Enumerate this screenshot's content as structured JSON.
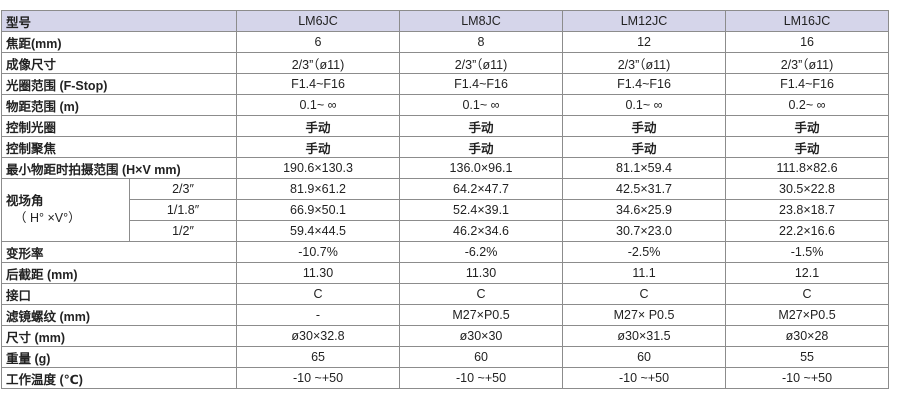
{
  "header": {
    "label": "型号",
    "models": [
      "LM6JC",
      "LM8JC",
      "LM12JC",
      "LM16JC"
    ]
  },
  "rows": {
    "focal": {
      "label": "焦距(mm)",
      "values": [
        "6",
        "8",
        "12",
        "16"
      ]
    },
    "imaging": {
      "label": "成像尺寸",
      "values": [
        "2/3”（ø11)",
        "2/3”（ø11)",
        "2/3”（ø11)",
        "2/3”（ø11)"
      ]
    },
    "aperture": {
      "label": "光圈范围 (F-Stop)",
      "values": [
        "F1.4~F16",
        "F1.4~F16",
        "F1.4~F16",
        "F1.4~F16"
      ]
    },
    "object_range": {
      "label": "物距范围 (m)",
      "values": [
        "0.1~ ∞",
        "0.1~ ∞",
        "0.1~ ∞",
        "0.2~ ∞"
      ]
    },
    "iris_control": {
      "label": "控制光圈",
      "values": [
        "手动",
        "手动",
        "手动",
        "手动"
      ]
    },
    "focus_control": {
      "label": "控制聚焦",
      "values": [
        "手动",
        "手动",
        "手动",
        "手动"
      ]
    },
    "min_area": {
      "label": "最小物距时拍摄范围 (H×V mm)",
      "values": [
        "190.6×130.3",
        "136.0×96.1",
        "81.1×59.4",
        "111.8×82.6"
      ]
    },
    "fov": {
      "label_line1": "视场角",
      "label_line2": "（ H° ×V°）",
      "rows": [
        {
          "format": "2/3″",
          "values": [
            "81.9×61.2",
            "64.2×47.7",
            "42.5×31.7",
            "30.5×22.8"
          ]
        },
        {
          "format": "1/1.8″",
          "values": [
            "66.9×50.1",
            "52.4×39.1",
            "34.6×25.9",
            "23.8×18.7"
          ]
        },
        {
          "format": "1/2″",
          "values": [
            "59.4×44.5",
            "46.2×34.6",
            "30.7×23.0",
            "22.2×16.6"
          ]
        }
      ]
    },
    "distortion": {
      "label": "变形率",
      "values": [
        "-10.7%",
        "-6.2%",
        "-2.5%",
        "-1.5%"
      ]
    },
    "back_focal": {
      "label": "后截距 (mm)",
      "values": [
        "11.30",
        "11.30",
        "11.1",
        "12.1"
      ]
    },
    "mount": {
      "label": "接口",
      "values": [
        "C",
        "C",
        "C",
        "C"
      ]
    },
    "filter": {
      "label": "滤镜螺纹 (mm)",
      "values": [
        "-",
        "M27×P0.5",
        "M27× P0.5",
        "M27×P0.5"
      ]
    },
    "size": {
      "label": "尺寸 (mm)",
      "values": [
        "ø30×32.8",
        "ø30×30",
        "ø30×31.5",
        "ø30×28"
      ]
    },
    "weight": {
      "label": "重量 (g)",
      "values": [
        "65",
        "60",
        "60",
        "55"
      ]
    },
    "temp": {
      "label": "工作温度 (℃)",
      "values": [
        "-10 ~+50",
        "-10 ~+50",
        "-10 ~+50",
        "-10 ~+50"
      ]
    }
  }
}
